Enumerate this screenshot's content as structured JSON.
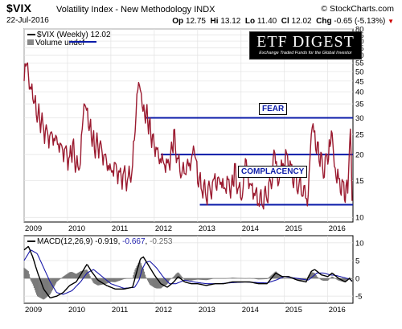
{
  "header": {
    "symbol": "$VIX",
    "name": "Volatility Index - New Methodology  INDX",
    "watermark": "© StockCharts.com",
    "date": "22-Jul-2016",
    "ohlc": {
      "open_label": "Op",
      "open": "12.75",
      "high_label": "Hi",
      "high": "13.12",
      "low_label": "Lo",
      "low": "11.40",
      "close_label": "Cl",
      "close": "12.02",
      "chg_label": "Chg",
      "chg": "-0.65 (-5.13%)"
    }
  },
  "logo": {
    "title": "ETF DIGEST",
    "tagline": "Exchange Traded Funds for the Global Investor"
  },
  "main_legend": {
    "series": "$VIX (Weekly) 12.02",
    "volume": "Volume undef"
  },
  "macd_legend": {
    "label": "MACD(12,26,9)",
    "v1": "-0.919",
    "v2": "-0.667",
    "v3": "-0.253"
  },
  "annotations": {
    "fear": "FEAR",
    "complacency": "COMPLACENCY"
  },
  "colors": {
    "vix_line": "#9b1b30",
    "level_line": "#0a1aa8",
    "annotation_text": "#0a1aa8",
    "macd_line": "#000000",
    "signal_line": "#1a1aaa",
    "histogram": "#7a7a7a",
    "down_arrow": "#cc0000"
  },
  "chart_data": [
    {
      "type": "line",
      "title": "$VIX (Weekly)",
      "x_ticks": [
        "2009",
        "2010",
        "2011",
        "2012",
        "2013",
        "2014",
        "2015",
        "2016"
      ],
      "y_ticks": [
        10,
        15,
        20,
        25,
        30,
        35,
        40,
        45,
        50,
        55,
        60,
        65,
        70,
        75,
        80
      ],
      "ylim": [
        9.5,
        80
      ],
      "xlim": [
        2009.0,
        2016.58
      ],
      "y_scale": "log",
      "grid": true,
      "series": [
        {
          "name": "$VIX (Weekly)",
          "x": [
            2009.0,
            2009.06,
            2009.12,
            2009.2,
            2009.28,
            2009.36,
            2009.45,
            2009.55,
            2009.65,
            2009.75,
            2009.85,
            2009.95,
            2010.05,
            2010.12,
            2010.2,
            2010.3,
            2010.36,
            2010.4,
            2010.48,
            2010.55,
            2010.62,
            2010.7,
            2010.8,
            2010.9,
            2011.0,
            2011.1,
            2011.2,
            2011.3,
            2011.4,
            2011.5,
            2011.58,
            2011.62,
            2011.66,
            2011.72,
            2011.78,
            2011.85,
            2011.92,
            2012.0,
            2012.1,
            2012.2,
            2012.3,
            2012.38,
            2012.45,
            2012.55,
            2012.65,
            2012.75,
            2012.85,
            2012.92,
            2013.0,
            2013.1,
            2013.2,
            2013.3,
            2013.42,
            2013.5,
            2013.6,
            2013.7,
            2013.78,
            2013.85,
            2013.95,
            2014.05,
            2014.1,
            2014.2,
            2014.3,
            2014.4,
            2014.5,
            2014.6,
            2014.7,
            2014.78,
            2014.85,
            2014.95,
            2015.05,
            2015.15,
            2015.25,
            2015.35,
            2015.45,
            2015.55,
            2015.62,
            2015.66,
            2015.72,
            2015.8,
            2015.9,
            2016.0,
            2016.05,
            2016.1,
            2016.15,
            2016.25,
            2016.35,
            2016.42,
            2016.48,
            2016.52,
            2016.56
          ],
          "values": [
            45,
            55,
            42,
            38,
            32,
            30,
            27,
            25,
            25,
            24,
            22,
            21,
            19,
            22,
            17,
            18,
            30,
            35,
            28,
            25,
            22,
            23,
            21,
            19,
            17,
            18,
            16,
            16,
            15,
            17,
            30,
            40,
            43,
            35,
            32,
            30,
            26,
            23,
            20,
            19,
            18,
            20,
            25,
            18,
            16,
            17,
            18,
            21,
            15,
            14,
            13,
            14,
            15,
            16,
            14,
            15,
            14,
            17,
            13,
            13,
            18,
            14,
            13,
            12,
            12,
            13,
            15,
            22,
            15,
            18,
            20,
            17,
            15,
            14,
            13,
            12,
            24,
            28,
            22,
            20,
            17,
            20,
            24,
            27,
            18,
            15,
            14,
            13,
            15,
            24,
            12
          ]
        }
      ],
      "levels": [
        {
          "y": 30,
          "x_start": 2011.8,
          "x_end": 2016.58
        },
        {
          "y": 20,
          "x_start": 2012.15,
          "x_end": 2016.58
        },
        {
          "y": 11.5,
          "x_start": 2013.05,
          "x_end": 2016.58
        }
      ]
    },
    {
      "type": "line",
      "title": "MACD(12,26,9)",
      "x_ticks": [
        "2009",
        "2010",
        "2011",
        "2012",
        "2013",
        "2014",
        "2015",
        "2016"
      ],
      "y_ticks": [
        -5,
        0,
        5,
        10
      ],
      "ylim": [
        -7,
        12
      ],
      "xlim": [
        2009.0,
        2016.58
      ],
      "grid": true,
      "series": [
        {
          "name": "MACD",
          "x": [
            2009.0,
            2009.1,
            2009.2,
            2009.3,
            2009.45,
            2009.6,
            2009.75,
            2009.9,
            2010.05,
            2010.2,
            2010.35,
            2010.45,
            2010.55,
            2010.7,
            2010.9,
            2011.1,
            2011.3,
            2011.5,
            2011.6,
            2011.68,
            2011.75,
            2011.85,
            2012.0,
            2012.15,
            2012.3,
            2012.45,
            2012.55,
            2012.7,
            2012.85,
            2013.0,
            2013.2,
            2013.4,
            2013.6,
            2013.8,
            2014.0,
            2014.2,
            2014.4,
            2014.6,
            2014.8,
            2014.95,
            2015.1,
            2015.3,
            2015.5,
            2015.62,
            2015.7,
            2015.85,
            2016.0,
            2016.1,
            2016.25,
            2016.4,
            2016.5,
            2016.56
          ],
          "values": [
            8,
            9,
            6,
            2,
            -3,
            -5.5,
            -5,
            -4,
            -2,
            -1,
            2,
            4,
            2,
            -0.5,
            -2,
            -3,
            -3,
            -2.5,
            2,
            5.5,
            6,
            4,
            1,
            -1.5,
            -2.5,
            -1,
            0.5,
            -1,
            -1.5,
            -1.5,
            -2,
            -1.5,
            -1.5,
            -1,
            -1,
            -1,
            -1.5,
            -1.5,
            1.5,
            0.5,
            0.5,
            -0.5,
            -1,
            2,
            2.5,
            1,
            0.5,
            1.5,
            0,
            -1,
            0,
            -0.9
          ]
        },
        {
          "name": "Signal",
          "x": [
            2009.0,
            2009.15,
            2009.3,
            2009.45,
            2009.6,
            2009.75,
            2009.9,
            2010.1,
            2010.3,
            2010.45,
            2010.6,
            2010.8,
            2011.0,
            2011.3,
            2011.55,
            2011.65,
            2011.72,
            2011.8,
            2011.9,
            2012.05,
            2012.2,
            2012.35,
            2012.5,
            2012.7,
            2012.9,
            2013.2,
            2013.5,
            2013.8,
            2014.1,
            2014.4,
            2014.6,
            2014.8,
            2015.0,
            2015.3,
            2015.55,
            2015.65,
            2015.75,
            2015.9,
            2016.05,
            2016.2,
            2016.35,
            2016.5,
            2016.56
          ],
          "values": [
            5,
            8,
            7,
            3,
            -1,
            -4,
            -4.5,
            -3.5,
            -1,
            1.5,
            2.5,
            0.5,
            -1.5,
            -2.8,
            -2.5,
            -0.5,
            2.5,
            4.5,
            4.8,
            3,
            0.5,
            -1.5,
            -1.5,
            -0.5,
            -1,
            -1.5,
            -1.5,
            -1.2,
            -1,
            -1.2,
            -1.3,
            -0.5,
            0.5,
            0,
            -0.5,
            0.5,
            1.5,
            1.5,
            1,
            0.8,
            0.3,
            -0.2,
            -0.7
          ]
        }
      ]
    }
  ]
}
